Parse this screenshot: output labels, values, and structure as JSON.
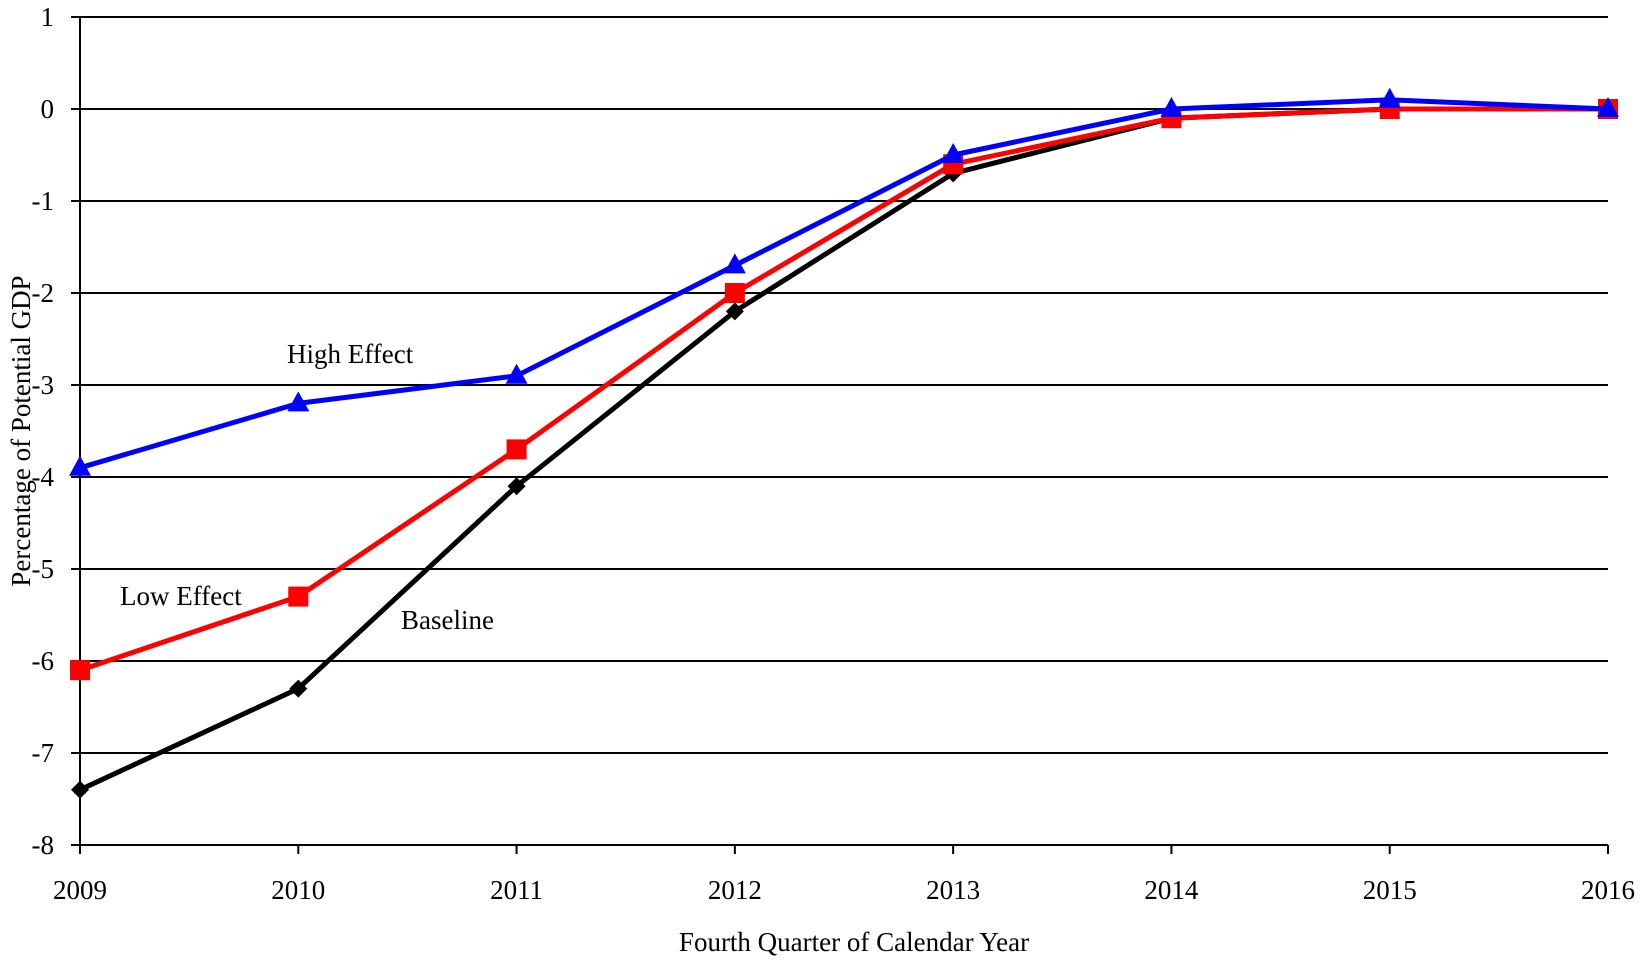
{
  "chart_data": {
    "type": "line",
    "title": "",
    "xlabel": "Fourth Quarter of Calendar Year",
    "ylabel": "Percentage of Potential GDP",
    "x": [
      "2009",
      "2010",
      "2011",
      "2012",
      "2013",
      "2014",
      "2015",
      "2016"
    ],
    "ylim": [
      -8,
      1
    ],
    "yticks": [
      "1",
      "0",
      "-1",
      "-2",
      "-3",
      "-4",
      "-5",
      "-6",
      "-7",
      "-8"
    ],
    "grid": true,
    "series": [
      {
        "name": "High Effect",
        "color": "#0000ff",
        "marker": "triangle",
        "values": [
          -3.9,
          -3.2,
          -2.9,
          -1.7,
          -0.5,
          0.0,
          0.1,
          0.0
        ]
      },
      {
        "name": "Low Effect",
        "color": "#ff0000",
        "marker": "square",
        "values": [
          -6.1,
          -5.3,
          -3.7,
          -2.0,
          -0.6,
          -0.1,
          0.0,
          0.0
        ]
      },
      {
        "name": "Baseline",
        "color": "#000000",
        "marker": "diamond",
        "values": [
          -7.4,
          -6.3,
          -4.1,
          -2.2,
          -0.7,
          -0.1,
          0.0,
          0.0
        ]
      }
    ]
  }
}
